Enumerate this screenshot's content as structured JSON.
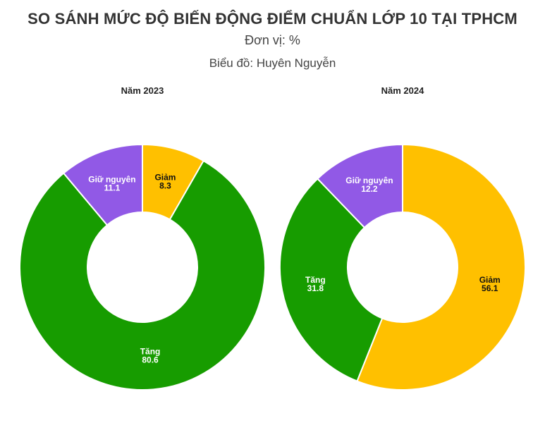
{
  "header": {
    "title": "SO SÁNH MỨC ĐỘ BIẾN ĐỘNG ĐIỂM CHUẨN LỚP 10 TẠI TPHCM",
    "subtitle": "Đơn vị: %",
    "credit": "Biểu đồ: Huyên Nguyễn"
  },
  "colors": {
    "giam": "#FFC000",
    "tang": "#179C00",
    "giu_nguyen": "#9159E6"
  },
  "chart_data": [
    {
      "type": "pie",
      "title": "Năm 2023",
      "donut": true,
      "slices": [
        {
          "label": "Giảm",
          "value": 8.3,
          "display": "8.3"
        },
        {
          "label": "Tăng",
          "value": 80.6,
          "display": "80.6"
        },
        {
          "label": "Giữ nguyên",
          "value": 11.1,
          "display": "11.1"
        }
      ]
    },
    {
      "type": "pie",
      "title": "Năm 2024",
      "donut": true,
      "slices": [
        {
          "label": "Giảm",
          "value": 56.1,
          "display": "56.1"
        },
        {
          "label": "Tăng",
          "value": 31.8,
          "display": "31.8"
        },
        {
          "label": "Giữ nguyên",
          "value": 12.2,
          "display": "12.2"
        }
      ]
    }
  ]
}
